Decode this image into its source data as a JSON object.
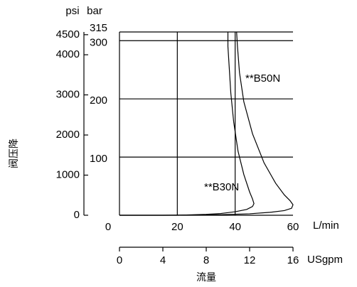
{
  "chart_data": {
    "type": "line",
    "x_label": "L/min",
    "xlim": [
      0,
      60
    ],
    "xticks": [
      0,
      20,
      40,
      60
    ],
    "x2_label": "USgpm",
    "x2lim": [
      0,
      16
    ],
    "x2ticks": [
      0,
      4,
      8,
      12,
      16
    ],
    "x_title": "流量",
    "y_label": "bar",
    "ylim": [
      0,
      315
    ],
    "yticks": [
      100,
      200,
      300,
      315
    ],
    "y2_label": "psi",
    "y2lim": [
      0,
      4568
    ],
    "y2ticks": [
      0,
      1000,
      2000,
      3000,
      4000,
      4500
    ],
    "y_title": "阀压降",
    "grid": true,
    "series": [
      {
        "name": "**B50N",
        "color": "#000000",
        "x": [
          0,
          15,
          25,
          35,
          45,
          52,
          57,
          59.5,
          60,
          59,
          57,
          54,
          50,
          46,
          43,
          41.5,
          40.8,
          40.5
        ],
        "values": [
          0,
          0,
          0.5,
          1,
          2.5,
          5,
          8,
          12,
          18,
          25,
          35,
          55,
          90,
          140,
          195,
          245,
          290,
          315
        ]
      },
      {
        "name": "**B30N",
        "color": "#000000",
        "x": [
          0,
          10,
          20,
          30,
          35,
          40,
          44,
          46,
          46.5,
          46,
          45,
          43,
          41,
          39.5,
          38.5,
          38,
          37.5,
          37.5
        ],
        "values": [
          0,
          0,
          0,
          1.5,
          3,
          6,
          10,
          15,
          20,
          28,
          40,
          70,
          110,
          160,
          210,
          250,
          290,
          315
        ]
      }
    ]
  }
}
